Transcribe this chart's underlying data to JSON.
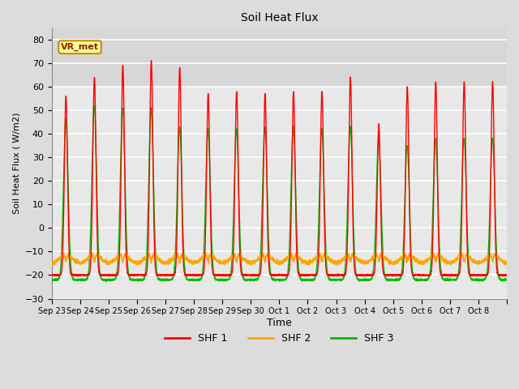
{
  "title": "Soil Heat Flux",
  "ylabel": "Soil Heat Flux ( W/m2)",
  "xlabel": "Time",
  "ylim": [
    -30,
    85
  ],
  "yticks": [
    -30,
    -20,
    -10,
    0,
    10,
    20,
    30,
    40,
    50,
    60,
    70,
    80
  ],
  "bg_color": "#dcdcdc",
  "plot_bg_light": "#e8e8e8",
  "plot_bg_dark": "#d0d0d0",
  "grid_color": "white",
  "shf1_color": "#ff0000",
  "shf2_color": "#ffa500",
  "shf3_color": "#00bb00",
  "annotation_text": "VR_met",
  "annotation_bg": "#ffff99",
  "annotation_border": "#cc8800",
  "tick_labels": [
    "Sep 23",
    "Sep 24",
    "Sep 25",
    "Sep 26",
    "Sep 27",
    "Sep 28",
    "Sep 29",
    "Sep 30",
    "Oct 1",
    "Oct 2",
    "Oct 3",
    "Oct 4",
    "Oct 5",
    "Oct 6",
    "Oct 7",
    "Oct 8"
  ],
  "daily_peaks_shf1": [
    56,
    64,
    69,
    71,
    68,
    57,
    58,
    57,
    58,
    58,
    64,
    44,
    60,
    62,
    62,
    62
  ],
  "daily_peaks_shf3": [
    46,
    52,
    51,
    51,
    43,
    42,
    42,
    43,
    43,
    42,
    43,
    39,
    35,
    38,
    38,
    38
  ],
  "night_val_shf1": -20,
  "night_val_shf3": -22,
  "linewidth": 1.0,
  "figwidth": 6.4,
  "figheight": 4.8,
  "dpi": 100
}
